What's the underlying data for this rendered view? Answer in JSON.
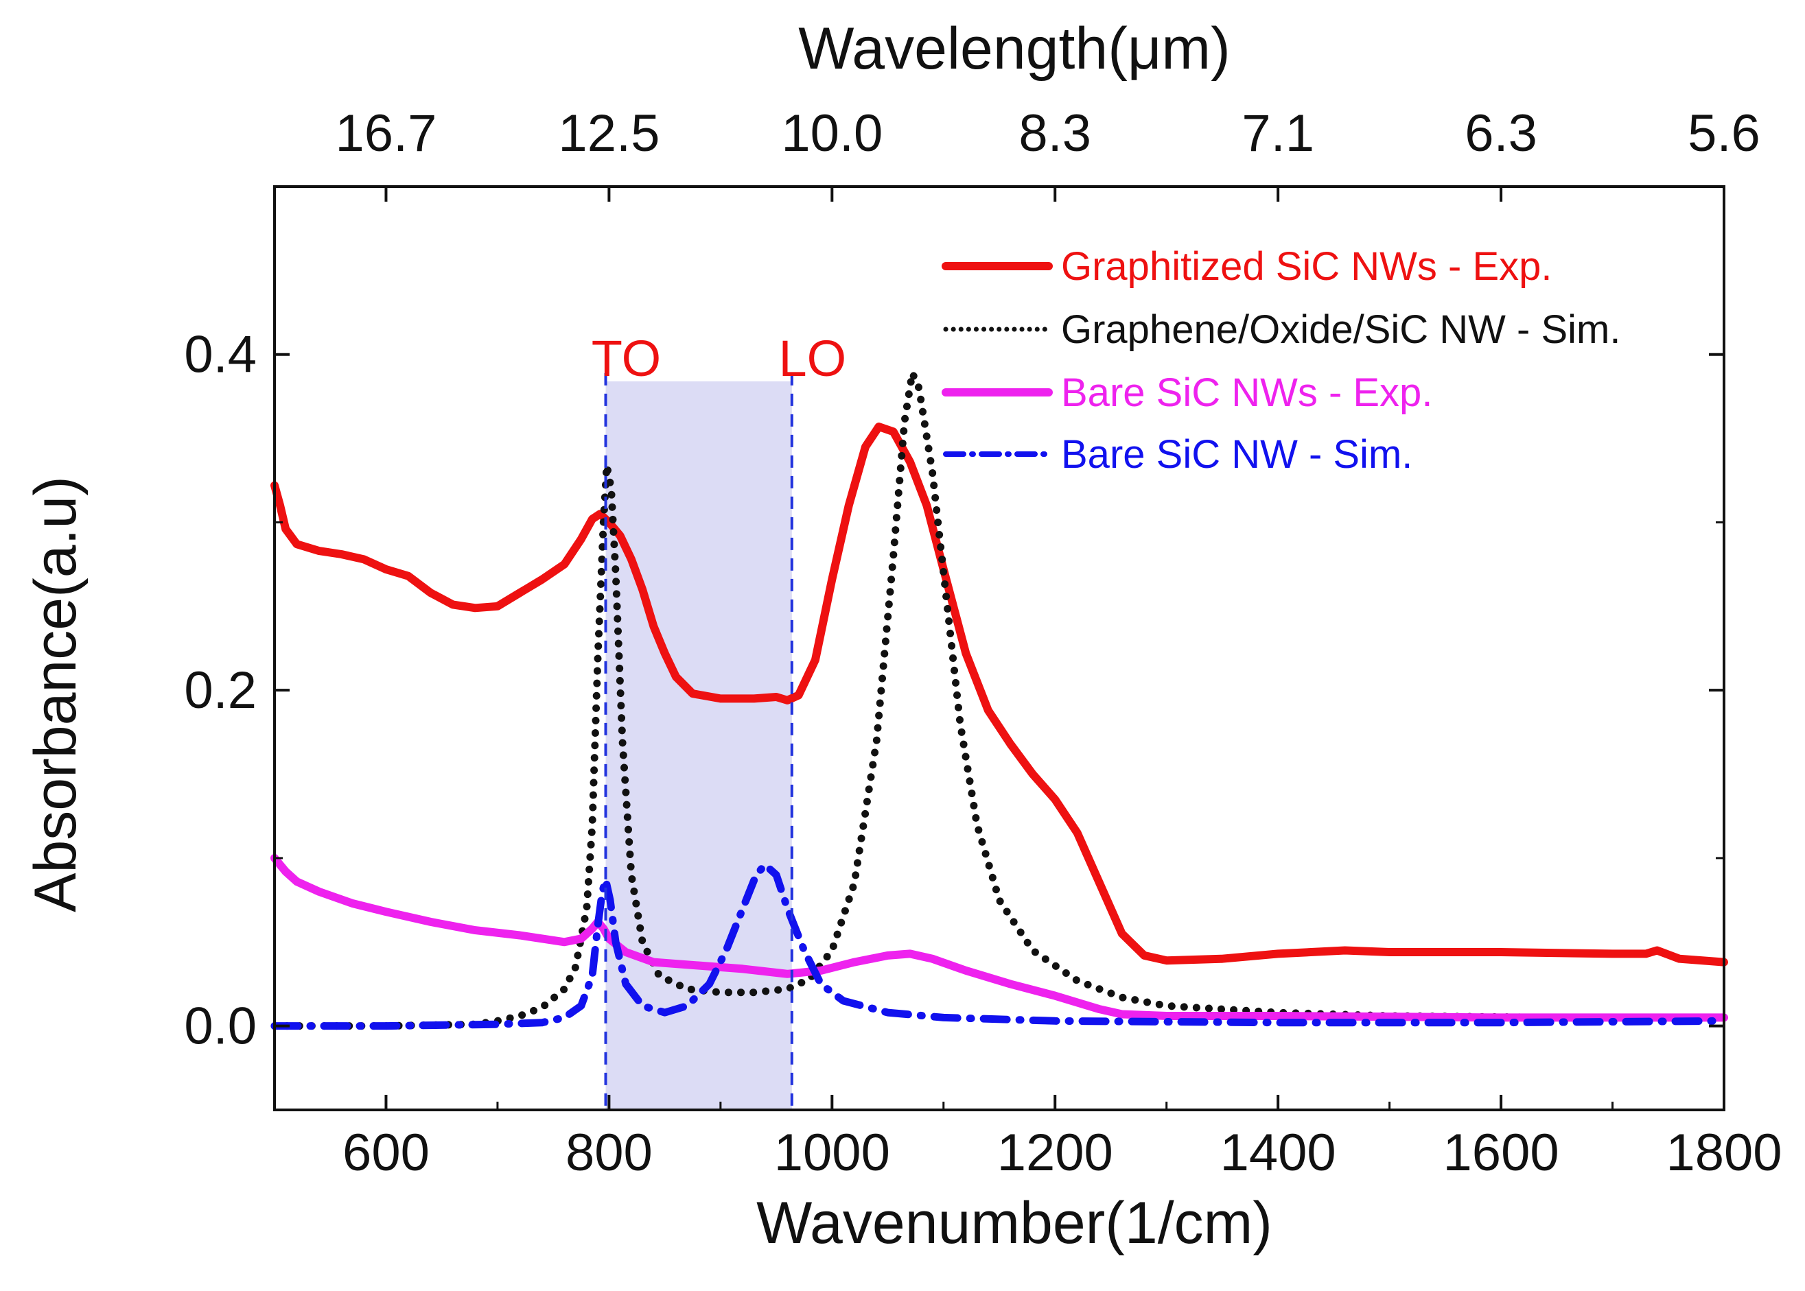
{
  "chart_data": {
    "type": "line",
    "title": "",
    "xlabel": "Wavenumber(1/cm)",
    "ylabel": "Absorbance(a.u)",
    "top_xlabel": "Wavelength(μm)",
    "xlim": [
      500,
      1800
    ],
    "ylim": [
      -0.05,
      0.5
    ],
    "x_ticks": [
      600,
      800,
      1000,
      1200,
      1400,
      1600,
      1800
    ],
    "x_tick_labels": [
      "600",
      "800",
      "1000",
      "1200",
      "1400",
      "1600",
      "1800"
    ],
    "y_ticks": [
      0.0,
      0.2,
      0.4
    ],
    "y_tick_labels": [
      "0.0",
      "0.2",
      "0.4"
    ],
    "top_ticks": [
      {
        "x": 600,
        "label": "16.7"
      },
      {
        "x": 800,
        "label": "12.5"
      },
      {
        "x": 1000,
        "label": "10.0"
      },
      {
        "x": 1200,
        "label": "8.3"
      },
      {
        "x": 1400,
        "label": "7.1"
      },
      {
        "x": 1600,
        "label": "6.3"
      },
      {
        "x": 1800,
        "label": "5.6"
      }
    ],
    "grid": false,
    "legend_position": "top-right",
    "band": {
      "x0": 797,
      "x1": 964,
      "y1": 0.384,
      "color": "#dcdcf5"
    },
    "annotations": [
      {
        "label": "TO",
        "x": 797,
        "color": "#ee1111"
      },
      {
        "label": "LO",
        "x": 964,
        "color": "#ee1111"
      }
    ],
    "series": [
      {
        "name": "Graphitized SiC NWs - Exp.",
        "color": "#ee1111",
        "style": "solid",
        "points": [
          [
            500,
            0.322
          ],
          [
            505,
            0.31
          ],
          [
            510,
            0.296
          ],
          [
            520,
            0.287
          ],
          [
            540,
            0.283
          ],
          [
            560,
            0.281
          ],
          [
            580,
            0.278
          ],
          [
            600,
            0.272
          ],
          [
            620,
            0.268
          ],
          [
            640,
            0.258
          ],
          [
            660,
            0.251
          ],
          [
            680,
            0.249
          ],
          [
            700,
            0.25
          ],
          [
            720,
            0.258
          ],
          [
            740,
            0.266
          ],
          [
            760,
            0.275
          ],
          [
            775,
            0.29
          ],
          [
            785,
            0.302
          ],
          [
            792,
            0.305
          ],
          [
            800,
            0.3
          ],
          [
            810,
            0.292
          ],
          [
            820,
            0.278
          ],
          [
            830,
            0.26
          ],
          [
            840,
            0.238
          ],
          [
            850,
            0.222
          ],
          [
            860,
            0.208
          ],
          [
            875,
            0.198
          ],
          [
            900,
            0.195
          ],
          [
            930,
            0.195
          ],
          [
            950,
            0.196
          ],
          [
            960,
            0.194
          ],
          [
            970,
            0.197
          ],
          [
            985,
            0.218
          ],
          [
            1000,
            0.266
          ],
          [
            1015,
            0.31
          ],
          [
            1030,
            0.345
          ],
          [
            1042,
            0.357
          ],
          [
            1055,
            0.354
          ],
          [
            1070,
            0.336
          ],
          [
            1085,
            0.31
          ],
          [
            1100,
            0.272
          ],
          [
            1120,
            0.222
          ],
          [
            1140,
            0.188
          ],
          [
            1160,
            0.168
          ],
          [
            1180,
            0.15
          ],
          [
            1200,
            0.135
          ],
          [
            1220,
            0.115
          ],
          [
            1240,
            0.085
          ],
          [
            1260,
            0.055
          ],
          [
            1280,
            0.042
          ],
          [
            1300,
            0.039
          ],
          [
            1350,
            0.04
          ],
          [
            1400,
            0.043
          ],
          [
            1460,
            0.045
          ],
          [
            1500,
            0.044
          ],
          [
            1600,
            0.044
          ],
          [
            1700,
            0.043
          ],
          [
            1730,
            0.043
          ],
          [
            1740,
            0.045
          ],
          [
            1760,
            0.04
          ],
          [
            1800,
            0.038
          ]
        ]
      },
      {
        "name": "Graphene/Oxide/SiC NW - Sim.",
        "color": "#111111",
        "style": "dotted",
        "points": [
          [
            500,
            0.0
          ],
          [
            600,
            0.0
          ],
          [
            680,
            0.001
          ],
          [
            700,
            0.003
          ],
          [
            720,
            0.006
          ],
          [
            740,
            0.011
          ],
          [
            760,
            0.022
          ],
          [
            770,
            0.035
          ],
          [
            780,
            0.07
          ],
          [
            785,
            0.12
          ],
          [
            790,
            0.22
          ],
          [
            795,
            0.3
          ],
          [
            798,
            0.334
          ],
          [
            802,
            0.32
          ],
          [
            806,
            0.27
          ],
          [
            812,
            0.17
          ],
          [
            820,
            0.09
          ],
          [
            830,
            0.05
          ],
          [
            845,
            0.03
          ],
          [
            870,
            0.022
          ],
          [
            900,
            0.02
          ],
          [
            930,
            0.02
          ],
          [
            960,
            0.022
          ],
          [
            980,
            0.028
          ],
          [
            1000,
            0.045
          ],
          [
            1020,
            0.085
          ],
          [
            1040,
            0.17
          ],
          [
            1055,
            0.28
          ],
          [
            1065,
            0.36
          ],
          [
            1072,
            0.389
          ],
          [
            1078,
            0.38
          ],
          [
            1090,
            0.33
          ],
          [
            1100,
            0.27
          ],
          [
            1115,
            0.18
          ],
          [
            1130,
            0.12
          ],
          [
            1150,
            0.075
          ],
          [
            1180,
            0.045
          ],
          [
            1220,
            0.027
          ],
          [
            1260,
            0.017
          ],
          [
            1300,
            0.012
          ],
          [
            1400,
            0.008
          ],
          [
            1500,
            0.006
          ],
          [
            1650,
            0.005
          ],
          [
            1800,
            0.005
          ]
        ]
      },
      {
        "name": "Bare SiC NWs - Exp.",
        "color": "#ee22ee",
        "style": "solid",
        "points": [
          [
            500,
            0.1
          ],
          [
            510,
            0.092
          ],
          [
            520,
            0.086
          ],
          [
            540,
            0.08
          ],
          [
            570,
            0.073
          ],
          [
            600,
            0.068
          ],
          [
            640,
            0.062
          ],
          [
            680,
            0.057
          ],
          [
            720,
            0.054
          ],
          [
            760,
            0.05
          ],
          [
            775,
            0.052
          ],
          [
            785,
            0.058
          ],
          [
            790,
            0.062
          ],
          [
            795,
            0.058
          ],
          [
            800,
            0.052
          ],
          [
            815,
            0.044
          ],
          [
            840,
            0.038
          ],
          [
            880,
            0.036
          ],
          [
            920,
            0.034
          ],
          [
            960,
            0.031
          ],
          [
            990,
            0.033
          ],
          [
            1020,
            0.038
          ],
          [
            1050,
            0.042
          ],
          [
            1070,
            0.043
          ],
          [
            1090,
            0.04
          ],
          [
            1120,
            0.033
          ],
          [
            1160,
            0.025
          ],
          [
            1200,
            0.018
          ],
          [
            1240,
            0.01
          ],
          [
            1260,
            0.007
          ],
          [
            1300,
            0.006
          ],
          [
            1400,
            0.006
          ],
          [
            1600,
            0.005
          ],
          [
            1800,
            0.005
          ]
        ]
      },
      {
        "name": "Bare SiC NW - Sim.",
        "color": "#1111ee",
        "style": "dashdot",
        "points": [
          [
            500,
            0.0
          ],
          [
            600,
            0.0
          ],
          [
            700,
            0.001
          ],
          [
            740,
            0.002
          ],
          [
            760,
            0.005
          ],
          [
            775,
            0.012
          ],
          [
            785,
            0.03
          ],
          [
            790,
            0.06
          ],
          [
            794,
            0.08
          ],
          [
            797,
            0.087
          ],
          [
            801,
            0.075
          ],
          [
            806,
            0.05
          ],
          [
            815,
            0.025
          ],
          [
            830,
            0.012
          ],
          [
            850,
            0.008
          ],
          [
            870,
            0.012
          ],
          [
            890,
            0.025
          ],
          [
            905,
            0.045
          ],
          [
            920,
            0.07
          ],
          [
            932,
            0.09
          ],
          [
            940,
            0.096
          ],
          [
            950,
            0.09
          ],
          [
            960,
            0.07
          ],
          [
            975,
            0.045
          ],
          [
            990,
            0.025
          ],
          [
            1010,
            0.015
          ],
          [
            1050,
            0.008
          ],
          [
            1100,
            0.005
          ],
          [
            1200,
            0.003
          ],
          [
            1400,
            0.002
          ],
          [
            1600,
            0.002
          ],
          [
            1800,
            0.003
          ]
        ]
      }
    ]
  }
}
